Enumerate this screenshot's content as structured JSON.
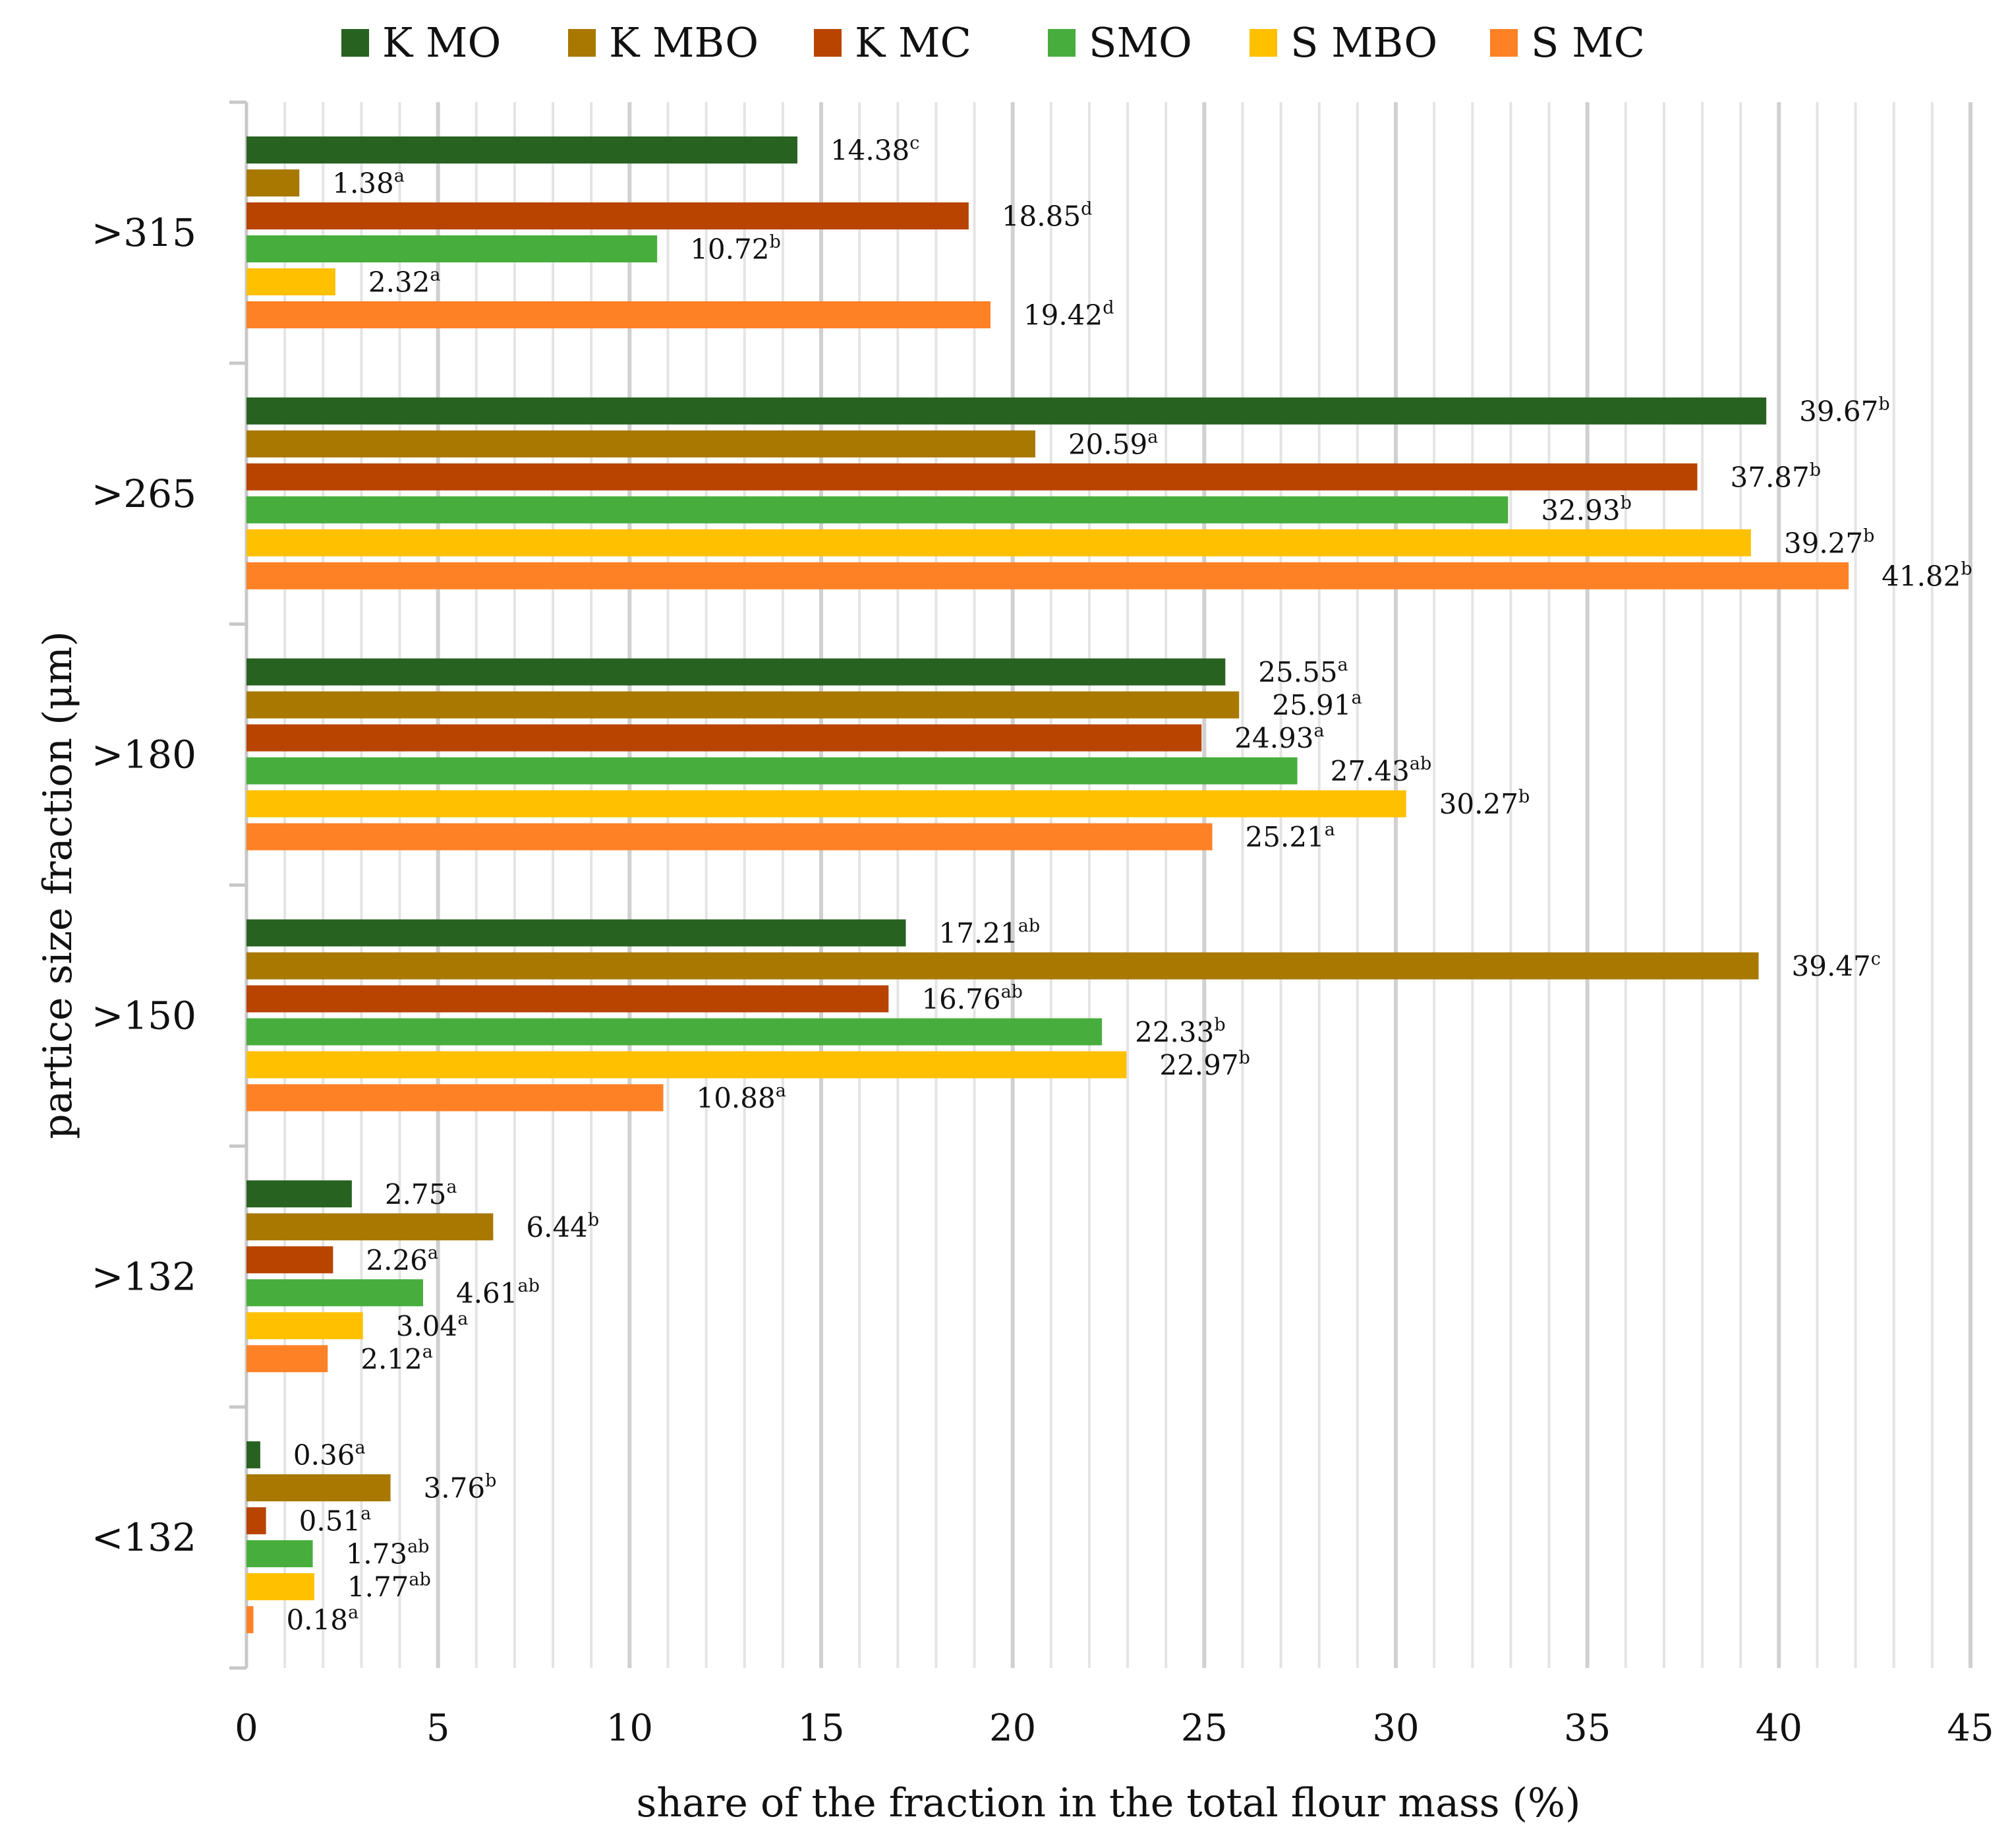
{
  "chart_data": {
    "type": "bar",
    "orientation": "horizontal",
    "title": "",
    "xlabel": "share of the fraction in the total flour mass (%)",
    "ylabel": "partice size fraction (μm)",
    "xlim": [
      0,
      45
    ],
    "xticks": [
      "0",
      "5",
      "10",
      "15",
      "20",
      "25",
      "30",
      "35",
      "40",
      "45"
    ],
    "categories": [
      ">315",
      ">265",
      ">180",
      ">150",
      ">132",
      "<132"
    ],
    "legend_position": "top",
    "series": [
      {
        "name": "K MO",
        "color": "#276221",
        "values": [
          14.38,
          39.67,
          25.55,
          17.21,
          2.75,
          0.36
        ],
        "labels": [
          "14.38",
          "39.67",
          "25.55",
          "17.21",
          "2.75",
          "0.36"
        ],
        "letters": [
          "c",
          "b",
          "a",
          "ab",
          "a",
          "a"
        ]
      },
      {
        "name": "K MBO",
        "color": "#A87800",
        "values": [
          1.38,
          20.59,
          25.91,
          39.47,
          6.44,
          3.76
        ],
        "labels": [
          "1.38",
          "20.59",
          "25.91",
          "39.47",
          "6.44",
          "3.76"
        ],
        "letters": [
          "a",
          "a",
          "a",
          "c",
          "b",
          "b"
        ]
      },
      {
        "name": "K MC",
        "color": "#B84400",
        "values": [
          18.85,
          37.87,
          24.93,
          16.76,
          2.26,
          0.51
        ],
        "labels": [
          "18.85",
          "37.87",
          "24.93",
          "16.76",
          "2.26",
          "0.51"
        ],
        "letters": [
          "d",
          "b",
          "a",
          "ab",
          "a",
          "a"
        ]
      },
      {
        "name": "SMO",
        "color": "#47AE3D",
        "values": [
          10.72,
          32.93,
          27.43,
          22.33,
          4.61,
          1.73
        ],
        "labels": [
          "10.72",
          "32.93",
          "27.43",
          "22.33",
          "4.61",
          "1.73"
        ],
        "letters": [
          "b",
          "b",
          "ab",
          "b",
          "ab",
          "ab"
        ]
      },
      {
        "name": "S MBO",
        "color": "#FFC000",
        "values": [
          2.32,
          39.27,
          30.27,
          22.97,
          3.04,
          1.77
        ],
        "labels": [
          "2.32",
          "39.27",
          "30.27",
          "22.97",
          "3.04",
          "1.77"
        ],
        "letters": [
          "a",
          "b",
          "b",
          "b",
          "a",
          "ab"
        ]
      },
      {
        "name": "S MC",
        "color": "#FF8126",
        "values": [
          19.42,
          41.82,
          25.21,
          10.88,
          2.12,
          0.18
        ],
        "labels": [
          "19.42",
          "41.82",
          "25.21",
          "10.88",
          "2.12",
          "0.18"
        ],
        "letters": [
          "d",
          "b",
          "a",
          "a",
          "a",
          "a"
        ]
      }
    ]
  }
}
